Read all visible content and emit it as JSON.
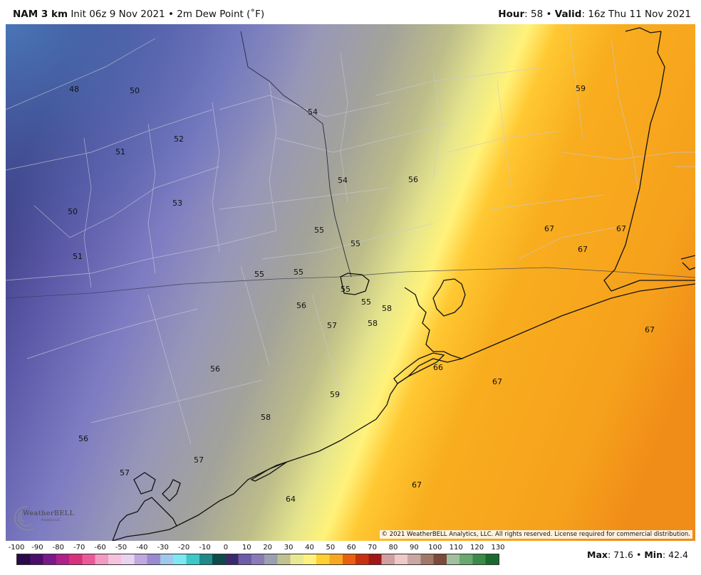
{
  "header": {
    "model": "NAM 3 km",
    "init": "Init 06z 9 Nov 2021",
    "sep": "•",
    "field": "2m Dew Point (˚F)",
    "hour_label": "Hour",
    "hour_value": "58",
    "valid_label": "Valid",
    "valid_value": "16z Thu 11 Nov 2021"
  },
  "map": {
    "copyright": "© 2021 WeatherBELL Analytics, LLC. All rights reserved. License required for commercial distribution.",
    "logo_text": "WeatherBELL",
    "logo_sub": "Analytics LLC",
    "labels": [
      {
        "text": "48"
      },
      {
        "text": "50"
      },
      {
        "text": "51"
      },
      {
        "text": "52"
      },
      {
        "text": "50"
      },
      {
        "text": "53"
      },
      {
        "text": "51"
      },
      {
        "text": "54"
      },
      {
        "text": "54"
      },
      {
        "text": "56"
      },
      {
        "text": "55"
      },
      {
        "text": "55"
      },
      {
        "text": "55"
      },
      {
        "text": "55"
      },
      {
        "text": "55"
      },
      {
        "text": "55"
      },
      {
        "text": "56"
      },
      {
        "text": "58"
      },
      {
        "text": "57"
      },
      {
        "text": "58"
      },
      {
        "text": "56"
      },
      {
        "text": "59"
      },
      {
        "text": "58"
      },
      {
        "text": "56"
      },
      {
        "text": "57"
      },
      {
        "text": "57"
      },
      {
        "text": "64"
      },
      {
        "text": "66"
      },
      {
        "text": "67"
      },
      {
        "text": "67"
      },
      {
        "text": "67"
      },
      {
        "text": "67"
      },
      {
        "text": "67"
      },
      {
        "text": "67"
      },
      {
        "text": "59"
      }
    ]
  },
  "legend": {
    "ticks": [
      "-100",
      "-90",
      "-80",
      "-70",
      "-60",
      "-50",
      "-40",
      "-30",
      "-20",
      "-10",
      "0",
      "10",
      "20",
      "30",
      "40",
      "50",
      "60",
      "70",
      "80",
      "90",
      "100",
      "110",
      "120",
      "130"
    ],
    "colors": [
      "#2a0a4a",
      "#4b0f6b",
      "#7a1a8a",
      "#b0208a",
      "#d8307a",
      "#ea5a98",
      "#f39ac0",
      "#f4c2dc",
      "#e8d4ee",
      "#c0a8e0",
      "#9a8ad0",
      "#a0c8ec",
      "#7ee8f0",
      "#3cc8c8",
      "#1e8a8a",
      "#0e4a4a",
      "#3a2a6a",
      "#6c5ca8",
      "#8a7ab8",
      "#9aa0b0",
      "#c0c090",
      "#e8e890",
      "#fff080",
      "#ffd030",
      "#f8a820",
      "#e86010",
      "#c83010",
      "#a01818",
      "#d0a0a0",
      "#f0c8c8",
      "#c8a8a0",
      "#a07868",
      "#7a4a3a",
      "#a0c0a0",
      "#6aa870",
      "#3a8a48",
      "#1a6a30"
    ],
    "max_label": "Max",
    "max_value": "71.6",
    "min_label": "Min",
    "min_value": "42.4",
    "sep": "•"
  }
}
